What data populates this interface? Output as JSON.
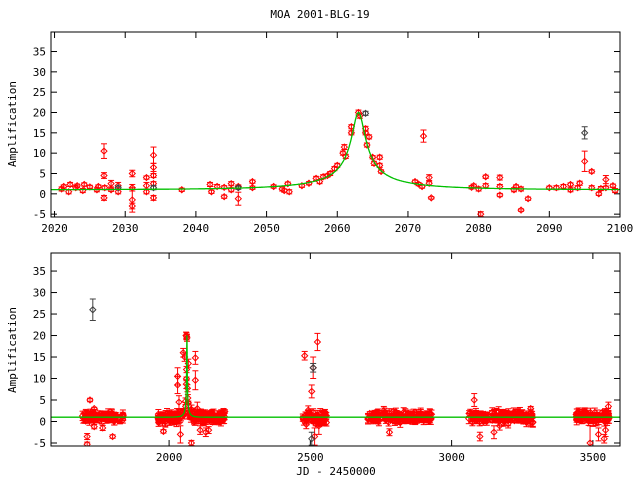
{
  "chart_data": [
    {
      "type": "scatter",
      "title": "MOA 2001-BLG-19",
      "xlabel": "",
      "ylabel": "Amplification",
      "xlim": [
        2019.5,
        2100
      ],
      "ylim": [
        -5.7,
        39.8
      ],
      "xticks": [
        2020,
        2030,
        2040,
        2050,
        2060,
        2070,
        2080,
        2090,
        2100
      ],
      "yticks": [
        -5,
        0,
        5,
        10,
        15,
        20,
        25,
        30,
        35
      ],
      "grid": false,
      "model": {
        "type": "line",
        "color": "#00c000",
        "t0": 2063,
        "u0": 0.05,
        "tE": 18.7
      },
      "series": [
        {
          "name": "data-red",
          "color": "#ff0000",
          "points": [
            [
              2021,
              1.2,
              0.5
            ],
            [
              2021.3,
              1.8,
              0.4
            ],
            [
              2022,
              0.5,
              0.5
            ],
            [
              2022.2,
              2.3,
              0.5
            ],
            [
              2023,
              1.5,
              0.5
            ],
            [
              2023.2,
              2,
              0.4
            ],
            [
              2024,
              0.8,
              0.5
            ],
            [
              2024.2,
              2.3,
              0.4
            ],
            [
              2025,
              1.7,
              0.4
            ],
            [
              2026,
              1,
              0.5
            ],
            [
              2026.2,
              1.8,
              0.4
            ],
            [
              2027,
              10.5,
              1.8
            ],
            [
              2027,
              4.5,
              0.7
            ],
            [
              2027,
              -1,
              0.6
            ],
            [
              2027.1,
              1.5,
              0.5
            ],
            [
              2028,
              2.5,
              0.8
            ],
            [
              2028,
              1,
              0.4
            ],
            [
              2029,
              2,
              0.8
            ],
            [
              2029,
              0.5,
              0.5
            ],
            [
              2031,
              5,
              0.8
            ],
            [
              2031,
              1.5,
              0.8
            ],
            [
              2031,
              -1.5,
              3
            ],
            [
              2031,
              -3,
              0.7
            ],
            [
              2033,
              4,
              0.4
            ],
            [
              2033,
              2,
              0.8
            ],
            [
              2033,
              0.5,
              0.5
            ],
            [
              2034,
              9.5,
              2
            ],
            [
              2034,
              6.5,
              1
            ],
            [
              2034,
              4.5,
              0.5
            ],
            [
              2034,
              2.5,
              0.5
            ],
            [
              2034,
              -1,
              0.6
            ],
            [
              2038,
              1,
              0.4
            ],
            [
              2042,
              2.3,
              0.5
            ],
            [
              2042.2,
              0.5,
              0.4
            ],
            [
              2043,
              1.8,
              0.5
            ],
            [
              2044,
              1.6,
              0.4
            ],
            [
              2044,
              -0.7,
              0.4
            ],
            [
              2045,
              2.5,
              0.5
            ],
            [
              2045,
              1,
              0.5
            ],
            [
              2046,
              -1.2,
              1.6
            ],
            [
              2046,
              1.8,
              0.4
            ],
            [
              2048,
              3,
              0.4
            ],
            [
              2048,
              1.5,
              0.4
            ],
            [
              2051,
              1.8,
              0.4
            ],
            [
              2052.2,
              1.2,
              0.5
            ],
            [
              2052.5,
              0.8,
              0.4
            ],
            [
              2053,
              2.5,
              0.4
            ],
            [
              2053.2,
              0.5,
              0.5
            ],
            [
              2055,
              2,
              0.4
            ],
            [
              2056,
              2.6,
              0.4
            ],
            [
              2057,
              3.8,
              0.5
            ],
            [
              2057.5,
              3,
              0.5
            ],
            [
              2058,
              4.2,
              0.5
            ],
            [
              2058.6,
              4.5,
              0.4
            ],
            [
              2059,
              5,
              0.5
            ],
            [
              2059.6,
              6.2,
              0.5
            ],
            [
              2060,
              7,
              0.5
            ],
            [
              2060.8,
              10,
              0.5
            ],
            [
              2061,
              11.5,
              0.6
            ],
            [
              2061.2,
              9.2,
              0.5
            ],
            [
              2062,
              15,
              0.5
            ],
            [
              2062,
              16.5,
              0.5
            ],
            [
              2063,
              20,
              0.6
            ],
            [
              2063.2,
              19.2,
              0.6
            ],
            [
              2064,
              16,
              0.6
            ],
            [
              2064,
              15,
              0.5
            ],
            [
              2064.2,
              12,
              0.5
            ],
            [
              2064.5,
              14,
              0.5
            ],
            [
              2065,
              9,
              0.4
            ],
            [
              2065.2,
              7.5,
              0.5
            ],
            [
              2066,
              9,
              0.5
            ],
            [
              2066,
              7,
              0.5
            ],
            [
              2066.2,
              5.5,
              0.4
            ],
            [
              2071,
              3,
              0.4
            ],
            [
              2071.5,
              2.4,
              0.4
            ],
            [
              2072,
              1.8,
              0.4
            ],
            [
              2072.2,
              14.2,
              1.5
            ],
            [
              2073,
              4,
              0.7
            ],
            [
              2073,
              2.6,
              0.5
            ],
            [
              2073.3,
              -1,
              0.3
            ],
            [
              2079,
              1.6,
              0.4
            ],
            [
              2079.3,
              2,
              0.4
            ],
            [
              2080,
              1.2,
              0.5
            ],
            [
              2080.3,
              -5,
              0.6
            ],
            [
              2081,
              4.2,
              0.4
            ],
            [
              2081,
              2,
              0.5
            ],
            [
              2083,
              4,
              0.6
            ],
            [
              2083,
              1.8,
              0.5
            ],
            [
              2083,
              -0.3,
              0.4
            ],
            [
              2085,
              1,
              0.5
            ],
            [
              2085.3,
              1.8,
              0.4
            ],
            [
              2086,
              -4,
              0.3
            ],
            [
              2086,
              1.2,
              0.5
            ],
            [
              2087,
              -1.2,
              0.4
            ],
            [
              2090,
              1.5,
              0.4
            ],
            [
              2091,
              1.5,
              0.5
            ],
            [
              2092,
              1.8,
              0.5
            ],
            [
              2093,
              2.3,
              0.4
            ],
            [
              2093,
              1,
              0.5
            ],
            [
              2094,
              1.5,
              0.5
            ],
            [
              2094.3,
              2.6,
              0.5
            ],
            [
              2095,
              8,
              2.5
            ],
            [
              2096,
              5.5,
              0.4
            ],
            [
              2096,
              1.5,
              0.5
            ],
            [
              2097,
              0,
              0.4
            ],
            [
              2097.3,
              1.3,
              0.5
            ],
            [
              2098,
              3.5,
              1
            ],
            [
              2098,
              1.5,
              0.4
            ],
            [
              2099,
              2,
              0.4
            ],
            [
              2099.3,
              0.8,
              0.5
            ]
          ]
        },
        {
          "name": "data-black",
          "color": "#404040",
          "points": [
            [
              2095,
              15,
              1.5
            ],
            [
              2034,
              1.5,
              0.5
            ],
            [
              2029,
              1.5,
              0.4
            ],
            [
              2046,
              1.5,
              0.4
            ],
            [
              2064,
              19.8,
              0.5
            ]
          ]
        }
      ]
    },
    {
      "type": "scatter",
      "title": "",
      "xlabel": "JD - 2450000",
      "ylabel": "Amplification",
      "xlim": [
        1582,
        3596
      ],
      "ylim": [
        -5.7,
        39.2
      ],
      "xticks": [
        2000,
        2500,
        3000,
        3500
      ],
      "yticks": [
        -5,
        0,
        5,
        10,
        15,
        20,
        25,
        30,
        35
      ],
      "grid": false,
      "model": {
        "type": "line",
        "color": "#00c000",
        "t0": 2063,
        "u0": 0.05,
        "tE": 18.7
      },
      "seasons": [
        {
          "range": [
            1690,
            1840
          ],
          "count": 90,
          "scatter": 0.8
        },
        {
          "range": [
            1960,
            2200
          ],
          "count": 180,
          "scatter": 1.0
        },
        {
          "range": [
            2470,
            2560
          ],
          "count": 50,
          "scatter": 1.2
        },
        {
          "range": [
            2700,
            2930
          ],
          "count": 160,
          "scatter": 0.9
        },
        {
          "range": [
            3060,
            3290
          ],
          "count": 160,
          "scatter": 1.0
        },
        {
          "range": [
            3440,
            3560
          ],
          "count": 90,
          "scatter": 1.0
        }
      ],
      "series": [
        {
          "name": "data-red",
          "color": "#ff0000",
          "points": [
            [
              1720,
              5,
              0.4
            ],
            [
              1710,
              -3.5,
              0.7
            ],
            [
              1710,
              -5.3,
              0.5
            ],
            [
              1735,
              -1.2,
              0.5
            ],
            [
              1765,
              -1.5,
              0.6
            ],
            [
              1800,
              -3.5,
              0.4
            ],
            [
              1735,
              3,
              0.3
            ],
            [
              1980,
              -2.3,
              0.4
            ],
            [
              2030,
              10.5,
              2
            ],
            [
              2030,
              8.5,
              2
            ],
            [
              2035,
              4.5,
              1.5
            ],
            [
              2040,
              -3,
              2
            ],
            [
              2050,
              16,
              1
            ],
            [
              2055,
              15,
              1
            ],
            [
              2060,
              20,
              0.8
            ],
            [
              2062,
              19.8,
              0.8
            ],
            [
              2068,
              13.5,
              1
            ],
            [
              2079,
              -5,
              0.6
            ],
            [
              2093,
              14.8,
              1.5
            ],
            [
              2093,
              9.6,
              2.2
            ],
            [
              2100,
              3,
              1.5
            ],
            [
              2110,
              -2,
              1
            ],
            [
              2130,
              -2.5,
              1
            ],
            [
              2140,
              -2,
              0.8
            ],
            [
              2480,
              15.3,
              1
            ],
            [
              2510,
              12.5,
              2.5
            ],
            [
              2505,
              7,
              1.5
            ],
            [
              2515,
              -3.5,
              2
            ],
            [
              2525,
              18.5,
              2
            ],
            [
              2530,
              -1,
              2
            ],
            [
              2540,
              1,
              1.5
            ],
            [
              2760,
              2.5,
              1
            ],
            [
              2780,
              -2.5,
              0.8
            ],
            [
              3080,
              5,
              1.5
            ],
            [
              3100,
              -3.5,
              1
            ],
            [
              3150,
              -2.5,
              1.5
            ],
            [
              3170,
              -1,
              1
            ],
            [
              3280,
              3,
              0.5
            ],
            [
              3200,
              -0.5,
              1
            ],
            [
              3490,
              -5,
              4
            ],
            [
              3520,
              -3,
              1.5
            ],
            [
              3540,
              -4,
              1
            ],
            [
              3545,
              -2,
              1.5
            ],
            [
              3555,
              3.5,
              1
            ]
          ]
        },
        {
          "name": "data-black",
          "color": "#404040",
          "points": [
            [
              1730,
              26,
              2.5
            ],
            [
              2510,
              12.5,
              1
            ],
            [
              2505,
              -4,
              1.5
            ]
          ]
        }
      ]
    }
  ]
}
